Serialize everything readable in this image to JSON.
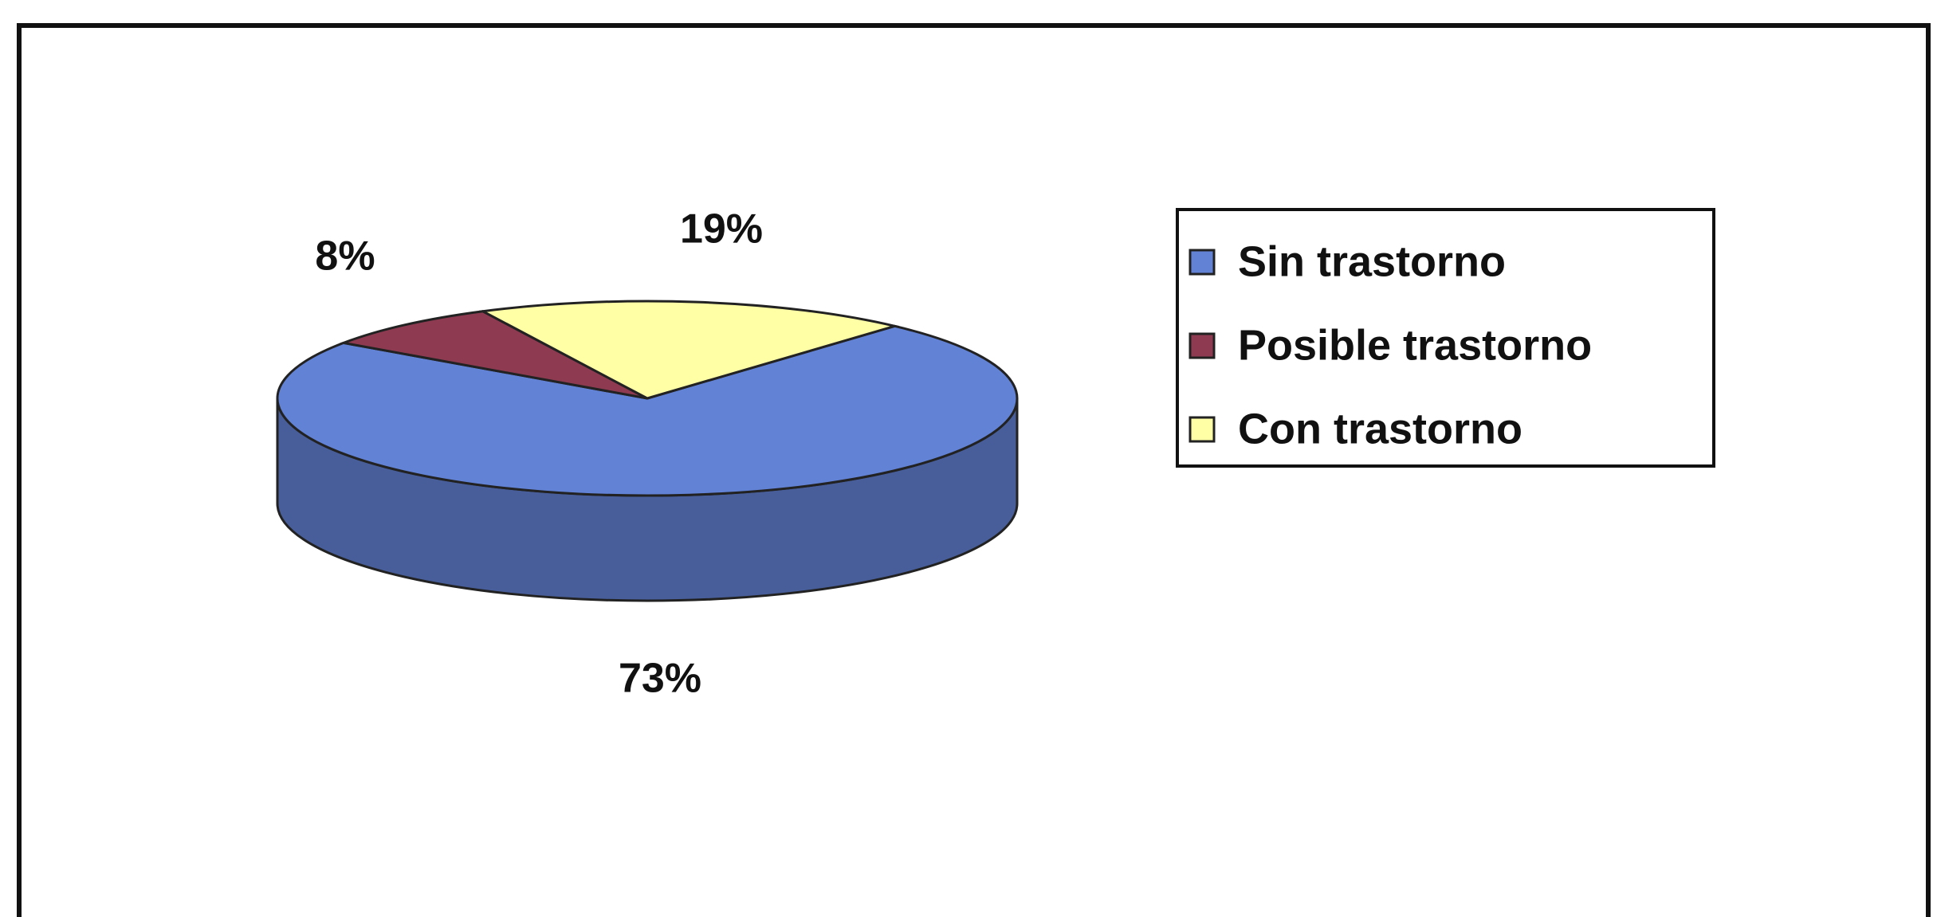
{
  "chart_data": {
    "type": "pie3d",
    "categories": [
      "Sin trastorno",
      "Posible trastorno",
      "Con trastorno"
    ],
    "values": [
      73,
      8,
      19
    ],
    "value_labels": [
      "73%",
      "8%",
      "19%"
    ],
    "colors": [
      "#6282d6",
      "#8e3b52",
      "#ffffa6"
    ],
    "legend": "right"
  }
}
